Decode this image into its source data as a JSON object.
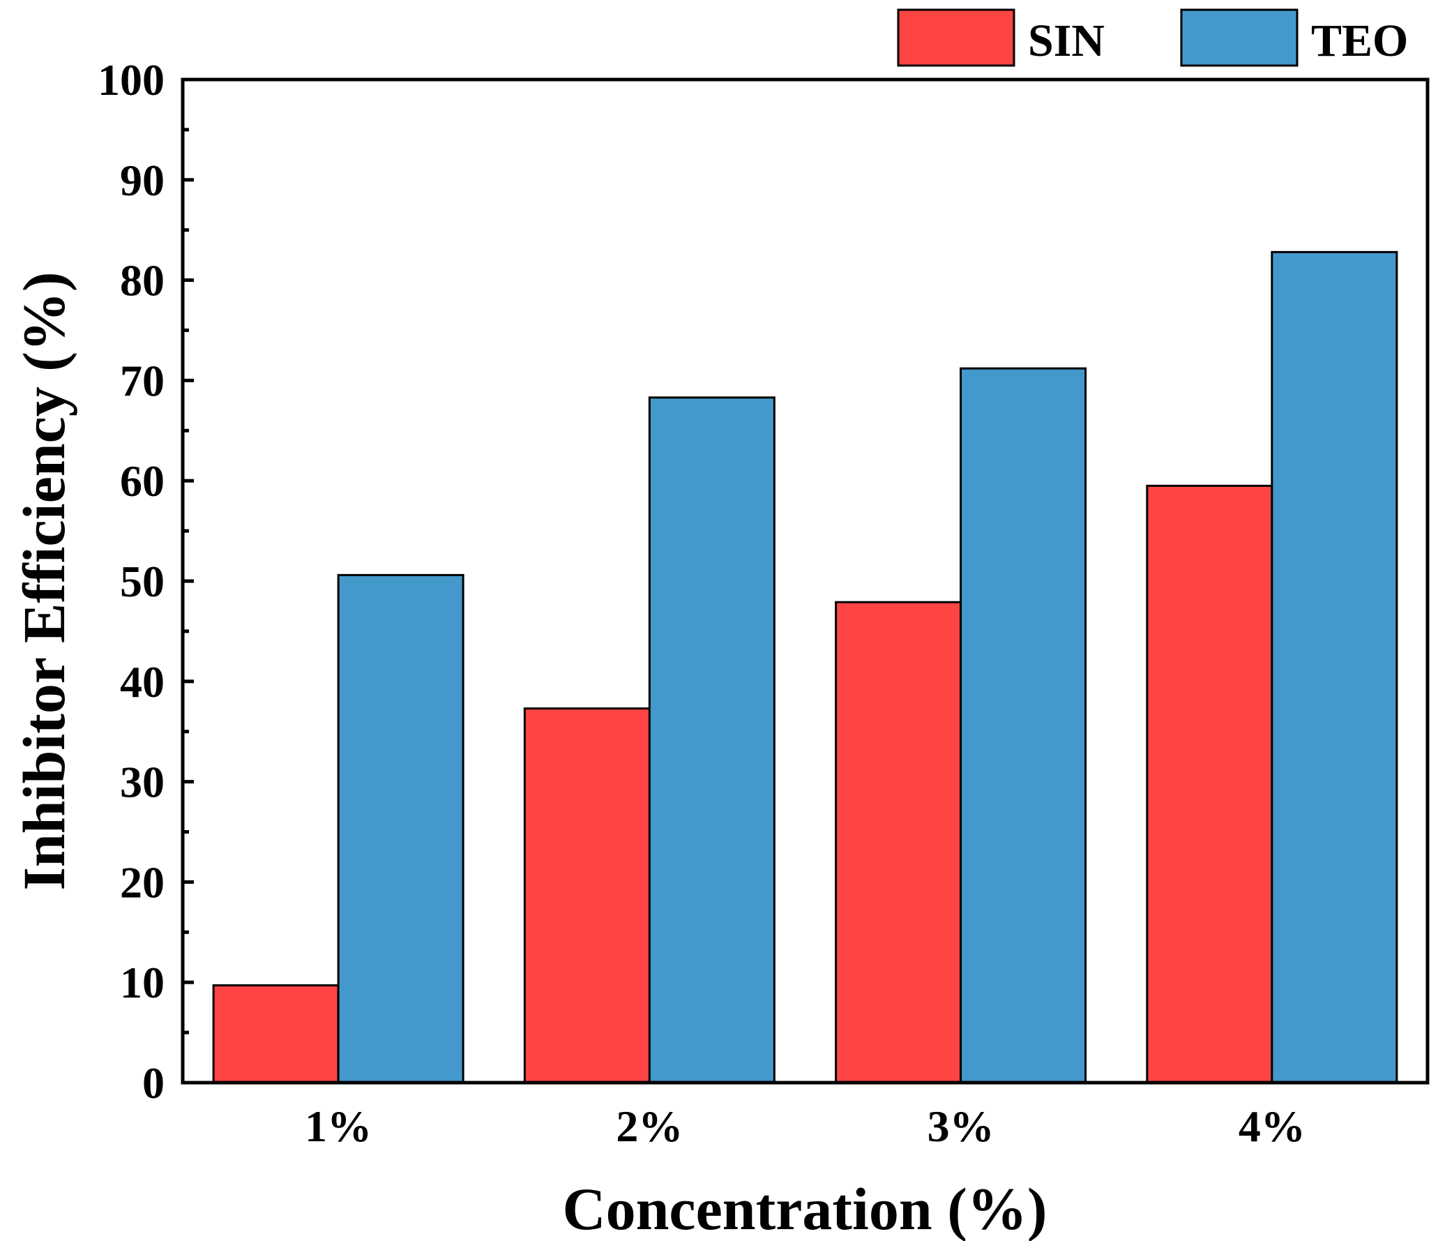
{
  "chart_data": {
    "type": "bar",
    "title": "",
    "xlabel": "Concentration (%)",
    "ylabel": "Inhibitor Efficiency (%)",
    "categories": [
      "1%",
      "2%",
      "3%",
      "4%"
    ],
    "series": [
      {
        "name": "SIN",
        "color": "#ff4444",
        "values": [
          9.7,
          37.3,
          47.9,
          59.5
        ]
      },
      {
        "name": "TEO",
        "color": "#4499cc",
        "values": [
          50.6,
          68.3,
          71.2,
          82.8
        ]
      }
    ],
    "ylim": [
      0,
      100
    ],
    "yticks": [
      "0",
      "10",
      "20",
      "30",
      "40",
      "50",
      "60",
      "70",
      "80",
      "90",
      "100"
    ],
    "ytick_values": [
      0,
      10,
      20,
      30,
      40,
      50,
      60,
      70,
      80,
      90,
      100
    ],
    "grid": false,
    "legend_position": "top-right"
  }
}
